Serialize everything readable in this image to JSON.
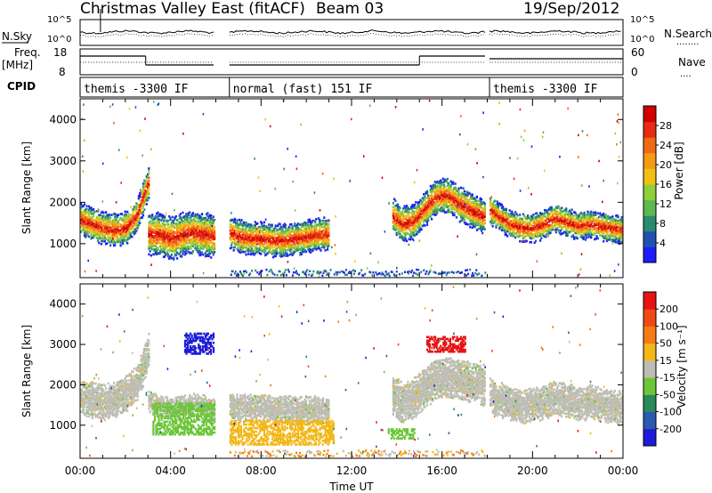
{
  "title": "Christmas Valley East (fitACF)",
  "beam_label": "Beam 03",
  "date": "19/Sep/2012",
  "colors": {
    "ground_scatter": "#bdbdb5",
    "trace": "#000000"
  },
  "top_panels": {
    "noise": {
      "left_label": "N.Sky",
      "left_ticks": [
        "10^5",
        "10^0"
      ],
      "right_ticks": [
        "10^5",
        "10^0"
      ],
      "right_label": "N.Search",
      "right_legend": "........"
    },
    "freq": {
      "left_label": "Freq.",
      "left_unit": "[MHz]",
      "left_ticks": [
        "18",
        "8"
      ],
      "right_ticks": [
        "60",
        "0"
      ],
      "right_label": "Nave",
      "right_legend": "...."
    },
    "cpid": {
      "label": "CPID",
      "segments": [
        {
          "text": "themis -3300 IF",
          "start_h": 0,
          "end_h": 5.9
        },
        {
          "text": "normal (fast) 151 IF",
          "start_h": 6.6,
          "end_h": 17.9
        },
        {
          "text": "themis -3300 IF",
          "start_h": 18.1,
          "end_h": 24
        }
      ]
    }
  },
  "chart_data": [
    {
      "type": "heatmap",
      "name": "power",
      "ylabel": "Slant Range [km]",
      "ylim": [
        180,
        4500
      ],
      "yticks": [
        1000,
        2000,
        3000,
        4000
      ],
      "xlim": [
        0,
        24
      ],
      "colorbar": {
        "label": "Power [dB]",
        "ticks": [
          "4",
          "8",
          "12",
          "16",
          "20",
          "24",
          "28"
        ],
        "colors": [
          "#1c1cff",
          "#2050b0",
          "#2a8a72",
          "#5cb850",
          "#8fcf3a",
          "#f2c014",
          "#f59a14",
          "#f06a14",
          "#e62a14",
          "#d20000"
        ]
      },
      "bands": [
        {
          "x": [
            0.0,
            0.5,
            1.0,
            1.5,
            2.0,
            2.5,
            2.8,
            3.0
          ],
          "y": [
            1600,
            1500,
            1400,
            1350,
            1400,
            1700,
            2200,
            2500
          ],
          "w": 380
        },
        {
          "x": [
            3.0,
            3.5,
            4.0,
            4.5,
            5.0,
            5.5,
            5.9
          ],
          "y": [
            1250,
            1250,
            1150,
            1250,
            1300,
            1250,
            1200
          ],
          "w": 500
        },
        {
          "x": [
            6.6,
            7.0,
            7.5,
            8.0,
            8.5,
            9.0,
            9.5,
            10.0,
            10.5,
            11.0
          ],
          "y": [
            1300,
            1200,
            1150,
            1150,
            1100,
            1100,
            1150,
            1200,
            1250,
            1250
          ],
          "w": 380
        },
        {
          "x": [
            13.8,
            14.2,
            14.7,
            15.2,
            15.7,
            16.2,
            16.7,
            17.2,
            17.6,
            17.9
          ],
          "y": [
            1700,
            1500,
            1550,
            1850,
            2150,
            2200,
            2000,
            1850,
            1750,
            1650
          ],
          "w": 400
        },
        {
          "x": [
            18.1,
            18.6,
            19.0,
            19.5,
            20.0,
            20.5,
            21.0,
            21.5,
            22.0,
            22.5,
            23.0,
            23.5,
            24.0
          ],
          "y": [
            1850,
            1650,
            1500,
            1400,
            1400,
            1500,
            1650,
            1550,
            1450,
            1500,
            1450,
            1400,
            1350
          ],
          "w": 330
        }
      ]
    },
    {
      "type": "heatmap",
      "name": "velocity",
      "ylabel": "Slant Range [km]",
      "ylim": [
        180,
        4500
      ],
      "yticks": [
        1000,
        2000,
        3000,
        4000
      ],
      "xlim": [
        0,
        24
      ],
      "xticks": [
        "00:00",
        "04:00",
        "08:00",
        "12:00",
        "16:00",
        "20:00",
        "00:00"
      ],
      "xlabel": "Time UT",
      "colorbar": {
        "label": "Velocity [m s⁻¹]",
        "ticks": [
          "200",
          "100",
          "50",
          "15",
          "-15",
          "-50",
          "-100",
          "-200"
        ],
        "colors": [
          "#1c1cd8",
          "#2a5ab0",
          "#2a8a5a",
          "#6cc63a",
          "#bdbdb5",
          "#f2b81a",
          "#f57c14",
          "#f04a14",
          "#e61414"
        ]
      },
      "ground_scatter_bands": [
        {
          "x": [
            0.0,
            0.5,
            1.0,
            1.5,
            2.0,
            2.5,
            2.8,
            3.0
          ],
          "y": [
            1700,
            1650,
            1600,
            1650,
            1800,
            2100,
            2500,
            2850
          ],
          "w": 420
        },
        {
          "x": [
            3.0,
            3.5,
            4.0,
            4.5,
            5.0,
            5.5,
            5.9
          ],
          "y": [
            1600,
            1500,
            1450,
            1500,
            1550,
            1500,
            1450
          ],
          "w": 250
        },
        {
          "x": [
            13.8,
            14.2,
            14.7,
            15.2,
            15.7,
            16.2,
            16.7,
            17.2,
            17.6,
            17.9
          ],
          "y": [
            1750,
            1600,
            1700,
            1950,
            2150,
            2200,
            2150,
            2100,
            2050,
            2000
          ],
          "w": 480
        },
        {
          "x": [
            18.1,
            18.6,
            19.0,
            19.5,
            20.0,
            20.5,
            21.0,
            21.5,
            22.0,
            22.5,
            23.0,
            23.5,
            24.0
          ],
          "y": [
            1750,
            1650,
            1550,
            1500,
            1500,
            1600,
            1700,
            1650,
            1550,
            1600,
            1550,
            1500,
            1450
          ],
          "w": 400
        },
        {
          "x": [
            6.6,
            7.0,
            7.5,
            8.0,
            8.5,
            9.0,
            9.5,
            10.0,
            10.5,
            11.0
          ],
          "y": [
            1500,
            1450,
            1450,
            1450,
            1400,
            1400,
            1400,
            1400,
            1400,
            1350
          ],
          "w": 320
        }
      ],
      "iono_patches": [
        {
          "x0": 3.2,
          "x1": 5.9,
          "y0": 800,
          "y1": 1600,
          "color": "#6cc63a"
        },
        {
          "x0": 6.6,
          "x1": 11.2,
          "y0": 550,
          "y1": 1150,
          "color": "#f2b81a"
        },
        {
          "x0": 13.6,
          "x1": 14.8,
          "y0": 700,
          "y1": 950,
          "color": "#6cc63a"
        },
        {
          "x0": 15.3,
          "x1": 17.0,
          "y0": 2850,
          "y1": 3250,
          "color": "#e61414"
        },
        {
          "x0": 4.6,
          "x1": 5.9,
          "y0": 2800,
          "y1": 3300,
          "color": "#1c1cd8"
        }
      ]
    }
  ]
}
